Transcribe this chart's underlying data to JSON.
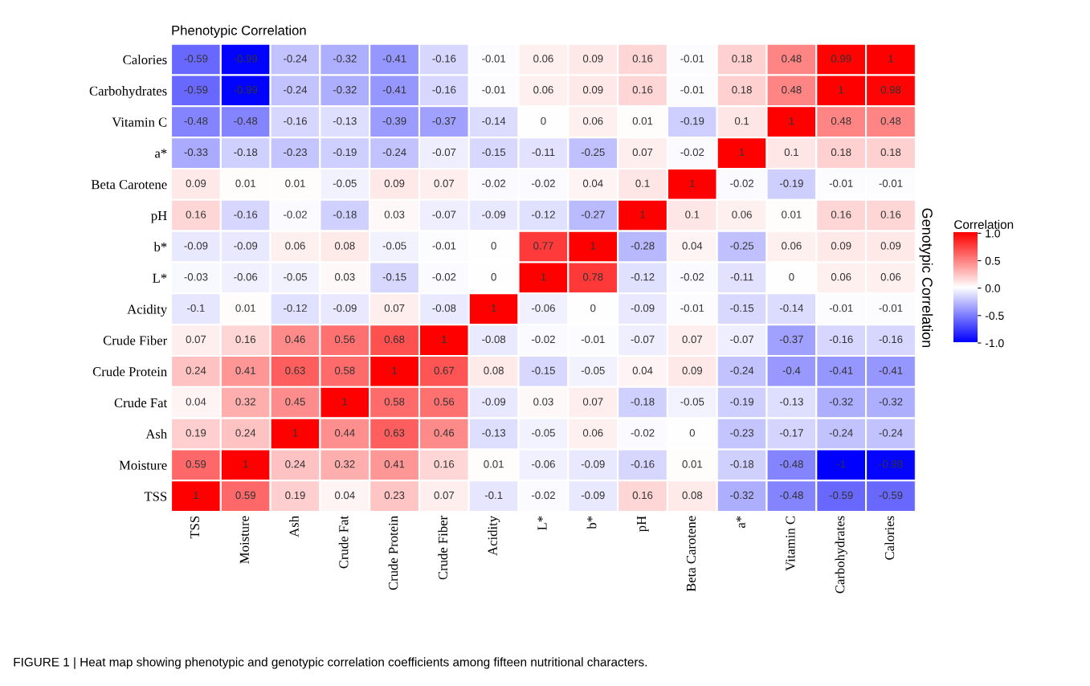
{
  "chart_data": {
    "type": "heatmap",
    "title": "Phenotypic Correlation",
    "y2label": "Genotypic Correlation",
    "clabel": "Correlation",
    "categories": [
      "TSS",
      "Moisture",
      "Ash",
      "Crude Fat",
      "Crude Protein",
      "Crude Fiber",
      "Acidity",
      "L*",
      "b*",
      "pH",
      "Beta Carotene",
      "a*",
      "Vitamin C",
      "Carbohydrates",
      "Calories"
    ],
    "y_categories": [
      "Calories",
      "Carbohydrates",
      "Vitamin C",
      "a*",
      "Beta Carotene",
      "pH",
      "b*",
      "L*",
      "Acidity",
      "Crude Fiber",
      "Crude Protein",
      "Crude Fat",
      "Ash",
      "Moisture",
      "TSS"
    ],
    "cells": [
      [
        -0.59,
        -0.99,
        -0.24,
        -0.32,
        -0.41,
        -0.16,
        -0.01,
        0.06,
        0.09,
        0.16,
        -0.01,
        0.18,
        0.48,
        0.99,
        1
      ],
      [
        -0.59,
        -0.99,
        -0.24,
        -0.32,
        -0.41,
        -0.16,
        -0.01,
        0.06,
        0.09,
        0.16,
        -0.01,
        0.18,
        0.48,
        1,
        0.98
      ],
      [
        -0.48,
        -0.48,
        -0.16,
        -0.13,
        -0.39,
        -0.37,
        -0.14,
        0,
        0.06,
        0.01,
        -0.19,
        0.1,
        1,
        0.48,
        0.48
      ],
      [
        -0.33,
        -0.18,
        -0.23,
        -0.19,
        -0.24,
        -0.07,
        -0.15,
        -0.11,
        -0.25,
        0.07,
        -0.02,
        1,
        0.1,
        0.18,
        0.18
      ],
      [
        0.09,
        0.01,
        0.01,
        -0.05,
        0.09,
        0.07,
        -0.02,
        -0.02,
        0.04,
        0.1,
        1,
        -0.02,
        -0.19,
        -0.01,
        -0.01
      ],
      [
        0.16,
        -0.16,
        -0.02,
        -0.18,
        0.03,
        -0.07,
        -0.09,
        -0.12,
        -0.27,
        1,
        0.1,
        0.06,
        0.01,
        0.16,
        0.16
      ],
      [
        -0.09,
        -0.09,
        0.06,
        0.08,
        -0.05,
        -0.01,
        0,
        0.77,
        1,
        -0.28,
        0.04,
        -0.25,
        0.06,
        0.09,
        0.09
      ],
      [
        -0.03,
        -0.06,
        -0.05,
        0.03,
        -0.15,
        -0.02,
        0,
        1,
        0.78,
        -0.12,
        -0.02,
        -0.11,
        0,
        0.06,
        0.06
      ],
      [
        -0.1,
        0.01,
        -0.12,
        -0.09,
        0.07,
        -0.08,
        1,
        -0.06,
        0,
        -0.09,
        -0.01,
        -0.15,
        -0.14,
        -0.01,
        -0.01
      ],
      [
        0.07,
        0.16,
        0.46,
        0.56,
        0.68,
        1,
        -0.08,
        -0.02,
        -0.01,
        -0.07,
        0.07,
        -0.07,
        -0.37,
        -0.16,
        -0.16
      ],
      [
        0.24,
        0.41,
        0.63,
        0.58,
        1,
        0.67,
        0.08,
        -0.15,
        -0.05,
        0.04,
        0.09,
        -0.24,
        -0.4,
        -0.41,
        -0.41
      ],
      [
        0.04,
        0.32,
        0.45,
        1,
        0.58,
        0.56,
        -0.09,
        0.03,
        0.07,
        -0.18,
        -0.05,
        -0.19,
        -0.13,
        -0.32,
        -0.32
      ],
      [
        0.19,
        0.24,
        1,
        0.44,
        0.63,
        0.46,
        -0.13,
        -0.05,
        0.06,
        -0.02,
        0,
        -0.23,
        -0.17,
        -0.24,
        -0.24
      ],
      [
        0.59,
        1,
        0.24,
        0.32,
        0.41,
        0.16,
        0.01,
        -0.06,
        -0.09,
        -0.16,
        0.01,
        -0.18,
        -0.48,
        -1,
        -0.98
      ],
      [
        1,
        0.59,
        0.19,
        0.04,
        0.23,
        0.07,
        -0.1,
        -0.02,
        -0.09,
        0.16,
        0.08,
        -0.32,
        -0.48,
        -0.59,
        -0.59
      ]
    ],
    "clim": [
      -1,
      1
    ],
    "cticks": [
      {
        "value": 1,
        "label": "1.0"
      },
      {
        "value": 0.5,
        "label": "0.5"
      },
      {
        "value": 0,
        "label": "0.0"
      },
      {
        "value": -0.5,
        "label": "-0.5"
      },
      {
        "value": -1,
        "label": "-1.0"
      }
    ],
    "data_labels": true,
    "annotations": [
      "FIGURE 1 | Heat map showing phenotypic and genotypic correlation coefficients among fifteen nutritional characters."
    ]
  }
}
